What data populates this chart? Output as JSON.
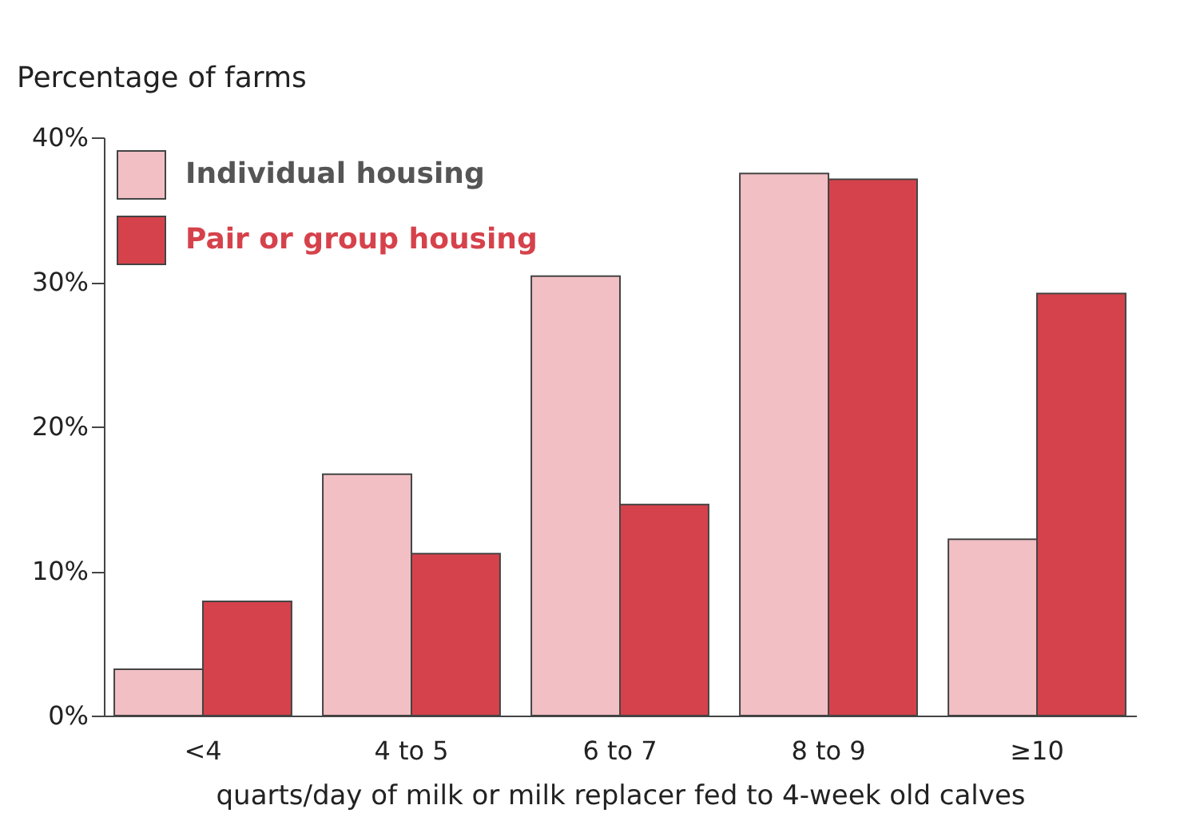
{
  "chart_data": {
    "type": "bar",
    "ylabel": "Percentage of farms",
    "xlabel": "quarts/day of milk or milk replacer fed to 4-week old calves",
    "categories": [
      "<4",
      "4 to 5",
      "6 to 7",
      "8 to 9",
      "≥10"
    ],
    "series": [
      {
        "name": "Individual housing",
        "color": "#f2c0c4",
        "values": [
          3.2,
          16.7,
          30.4,
          37.5,
          12.2
        ]
      },
      {
        "name": "Pair or group housing",
        "color": "#d6424b",
        "values": [
          7.9,
          11.2,
          14.6,
          37.1,
          29.2
        ]
      }
    ],
    "ylim": [
      0,
      40
    ],
    "yticks": [
      {
        "value": 0,
        "label": "0%"
      },
      {
        "value": 10,
        "label": "10%"
      },
      {
        "value": 20,
        "label": "20%"
      },
      {
        "value": 30,
        "label": "30%"
      },
      {
        "value": 40,
        "label": "40%"
      }
    ],
    "grid": false,
    "legend": "top left"
  }
}
